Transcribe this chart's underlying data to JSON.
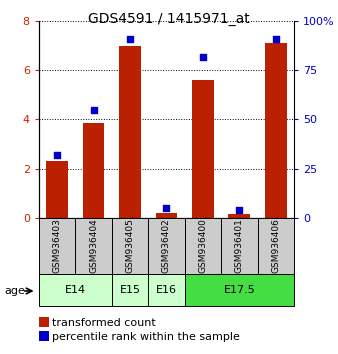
{
  "title": "GDS4591 / 1415971_at",
  "samples": [
    "GSM936403",
    "GSM936404",
    "GSM936405",
    "GSM936402",
    "GSM936400",
    "GSM936401",
    "GSM936406"
  ],
  "transformed_counts": [
    2.3,
    3.85,
    7.0,
    0.2,
    5.6,
    0.15,
    7.1
  ],
  "percentile_ranks": [
    32,
    55,
    91,
    5,
    82,
    4,
    91
  ],
  "bar_color": "#bb2000",
  "dot_color": "#0000cc",
  "ylim_left": [
    0,
    8
  ],
  "ylim_right": [
    0,
    100
  ],
  "yticks_left": [
    0,
    2,
    4,
    6,
    8
  ],
  "yticks_right": [
    0,
    25,
    50,
    75,
    100
  ],
  "ytick_labels_right": [
    "0",
    "25",
    "50",
    "75",
    "100%"
  ],
  "age_groups": [
    {
      "label": "E14",
      "cols": [
        0,
        1
      ],
      "color": "#ccffcc"
    },
    {
      "label": "E15",
      "cols": [
        2
      ],
      "color": "#ccffcc"
    },
    {
      "label": "E16",
      "cols": [
        3
      ],
      "color": "#ccffcc"
    },
    {
      "label": "E17.5",
      "cols": [
        4,
        5,
        6
      ],
      "color": "#44dd44"
    }
  ],
  "legend_tc_label": "transformed count",
  "legend_pr_label": "percentile rank within the sample",
  "age_label": "age",
  "tick_color_left": "#cc2200",
  "tick_color_right": "#0000cc",
  "sample_box_color": "#cccccc",
  "title_fontsize": 10,
  "axis_fontsize": 8,
  "sample_fontsize": 6.5,
  "age_fontsize": 8,
  "legend_fontsize": 8
}
